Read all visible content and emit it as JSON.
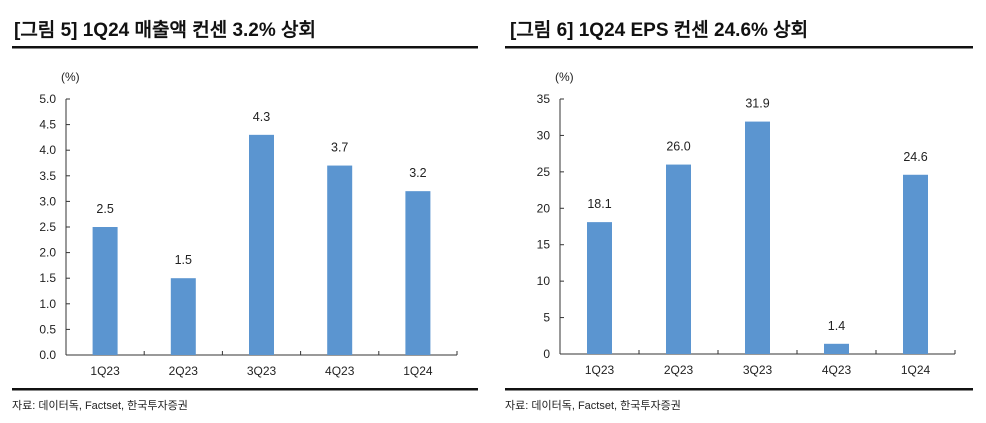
{
  "chart_data": [
    {
      "type": "bar",
      "title": "[그림 5] 1Q24 매출액 컨센 3.2% 상회",
      "unit": "(%)",
      "categories": [
        "1Q23",
        "2Q23",
        "3Q23",
        "4Q23",
        "1Q24"
      ],
      "values": [
        2.5,
        1.5,
        4.3,
        3.7,
        3.2
      ],
      "data_labels": [
        "2.5",
        "1.5",
        "4.3",
        "3.7",
        "3.2"
      ],
      "ylim": [
        0,
        5
      ],
      "yticks": [
        "0.0",
        "0.5",
        "1.0",
        "1.5",
        "2.0",
        "2.5",
        "3.0",
        "3.5",
        "4.0",
        "4.5",
        "5.0"
      ],
      "grid": false,
      "bar_color": "#5B95D0",
      "source": "자료: 데이터독, Factset, 한국투자증권"
    },
    {
      "type": "bar",
      "title": "[그림 6] 1Q24 EPS 컨센 24.6% 상회",
      "unit": "(%)",
      "categories": [
        "1Q23",
        "2Q23",
        "3Q23",
        "4Q23",
        "1Q24"
      ],
      "values": [
        18.1,
        26.0,
        31.9,
        1.4,
        24.6
      ],
      "data_labels": [
        "18.1",
        "26.0",
        "31.9",
        "1.4",
        "24.6"
      ],
      "ylim": [
        0,
        35
      ],
      "yticks": [
        "0",
        "5",
        "10",
        "15",
        "20",
        "25",
        "30",
        "35"
      ],
      "grid": false,
      "bar_color": "#5B95D0",
      "source": "자료: 데이터독, Factset, 한국투자증권"
    }
  ]
}
